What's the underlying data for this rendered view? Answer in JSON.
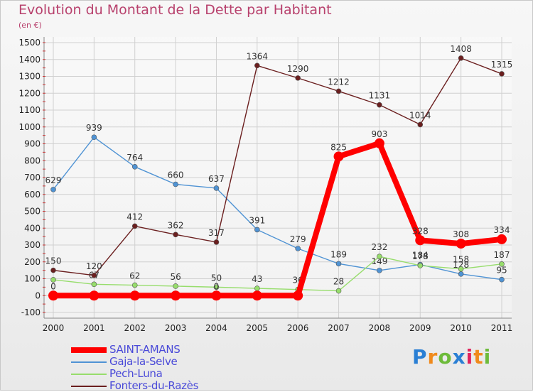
{
  "header": {
    "title": "Evolution du Montant de la Dette par Habitant",
    "unit": "(en €)"
  },
  "logo": {
    "text": "Proxiti"
  },
  "chart_data": {
    "type": "line",
    "title": "Evolution du Montant de la Dette par Habitant",
    "subtitle": "(en €)",
    "xlabel": "",
    "ylabel": "",
    "x": [
      "2000",
      "2001",
      "2002",
      "2003",
      "2004",
      "2005",
      "2006",
      "2007",
      "2008",
      "2009",
      "2010",
      "2011"
    ],
    "ylim": [
      -100,
      1500
    ],
    "yticks": [
      "-100",
      "0",
      "100",
      "200",
      "300",
      "400",
      "500",
      "600",
      "700",
      "800",
      "900",
      "1000",
      "1100",
      "1200",
      "1300",
      "1400",
      "1500"
    ],
    "grid": true,
    "legend_position": "bottom-left",
    "series": [
      {
        "name": "SAINT-AMANS",
        "color": "#ff0000",
        "values": [
          0,
          0,
          0,
          0,
          0,
          0,
          0,
          825,
          903,
          328,
          308,
          334
        ],
        "labels": [
          "0",
          "",
          "",
          "",
          "0",
          "",
          "",
          "825",
          "903",
          "328",
          "308",
          "334"
        ]
      },
      {
        "name": "Gaja-la-Selve",
        "color": "#4f93d4",
        "values": [
          629,
          939,
          764,
          660,
          637,
          391,
          279,
          189,
          149,
          184,
          128,
          95
        ],
        "labels": [
          "629",
          "939",
          "764",
          "660",
          "637",
          "391",
          "279",
          "189",
          "149",
          "184",
          "128",
          "95"
        ]
      },
      {
        "name": "Pech-Luna",
        "color": "#97dd6c",
        "values": [
          94,
          67,
          62,
          56,
          50,
          43,
          36,
          28,
          232,
          178,
          158,
          187
        ],
        "labels": [
          "",
          "67",
          "62",
          "56",
          "50",
          "43",
          "36",
          "28",
          "232",
          "178",
          "158",
          "187"
        ]
      },
      {
        "name": "Fonters-du-Razès",
        "color": "#6b1f1f",
        "values": [
          150,
          120,
          412,
          362,
          317,
          1364,
          1290,
          1212,
          1131,
          1014,
          1408,
          1315
        ],
        "labels": [
          "150",
          "120",
          "412",
          "362",
          "317",
          "1364",
          "1290",
          "1212",
          "1131",
          "1014",
          "1408",
          "1315"
        ]
      }
    ]
  }
}
